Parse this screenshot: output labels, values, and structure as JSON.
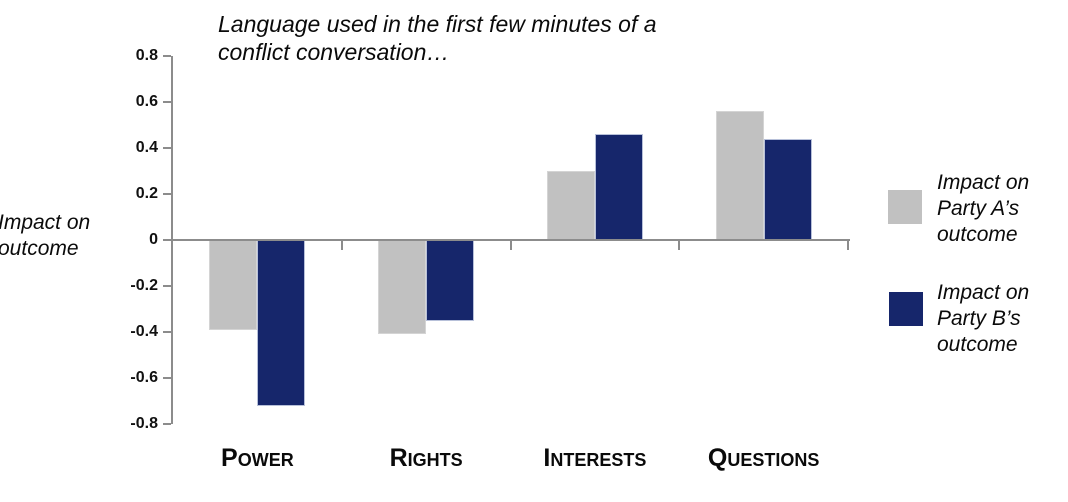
{
  "chart_data": {
    "type": "bar",
    "title": "Language used in the first few minutes of a\nconflict conversation…",
    "ylabel": "Impact on\noutcome",
    "categories": [
      "Power",
      "Rights",
      "Interests",
      "Questions"
    ],
    "series": [
      {
        "name": "Impact on\nParty A’s\noutcome",
        "color": "#c1c1c1",
        "values": [
          -0.39,
          -0.41,
          0.3,
          0.56
        ]
      },
      {
        "name": "Impact on\nParty B’s\noutcome",
        "color": "#16266b",
        "values": [
          -0.72,
          -0.35,
          0.46,
          0.44
        ]
      }
    ],
    "ylim": [
      -0.8,
      0.8
    ],
    "yticks": [
      "0.8",
      "0.6",
      "0.4",
      "0.2",
      "0",
      "-0.2",
      "-0.4",
      "-0.6",
      "-0.8"
    ],
    "grid": false,
    "legend_position": "right",
    "axis_color": "#8c8c8c",
    "series_a_color": "#c1c1c1",
    "series_b_color": "#16266b"
  }
}
